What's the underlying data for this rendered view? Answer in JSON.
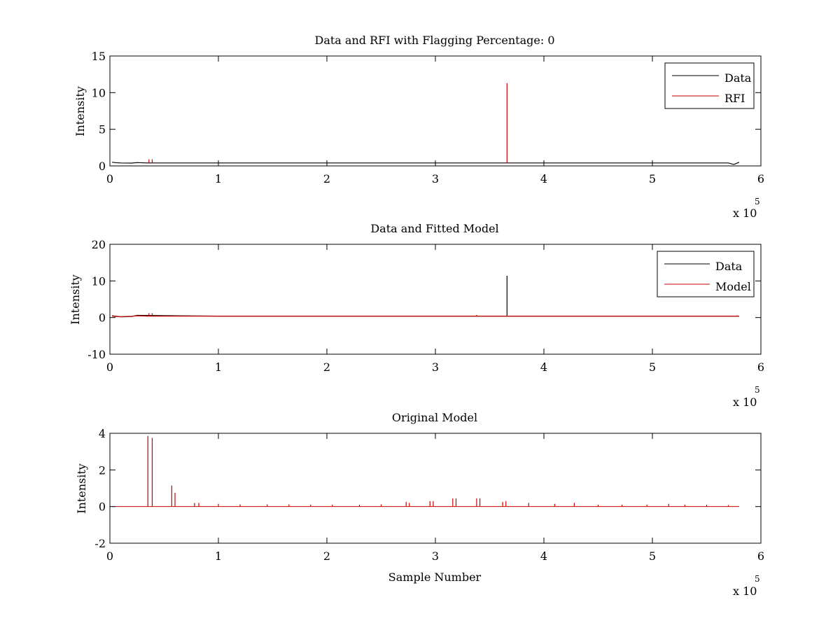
{
  "figure": {
    "background": "#ffffff"
  },
  "chart_data": [
    {
      "type": "line",
      "title": "Data and RFI with Flagging Percentage: 0",
      "xlabel": "",
      "ylabel": "Intensity",
      "xlim": [
        0,
        6
      ],
      "ylim": [
        0,
        15
      ],
      "xticks": [
        "0",
        "1",
        "2",
        "3",
        "4",
        "5",
        "6"
      ],
      "yticks": [
        "0",
        "5",
        "10",
        "15"
      ],
      "x_multiplier": {
        "base": "x 10",
        "exponent": "5"
      },
      "grid": false,
      "legend_position": "top-right",
      "series": [
        {
          "name": "Data",
          "color": "#000000",
          "kind": "baseline",
          "points": [
            [
              0.02,
              0.5
            ],
            [
              0.05,
              0.45
            ],
            [
              0.1,
              0.4
            ],
            [
              0.2,
              0.38
            ],
            [
              0.25,
              0.45
            ],
            [
              0.35,
              0.4
            ],
            [
              1,
              0.4
            ],
            [
              2,
              0.4
            ],
            [
              3,
              0.4
            ],
            [
              4,
              0.4
            ],
            [
              5,
              0.4
            ],
            [
              5.7,
              0.4
            ],
            [
              5.75,
              0.2
            ],
            [
              5.8,
              0.5
            ]
          ]
        },
        {
          "name": "RFI",
          "color": "#cc0000",
          "kind": "spikes",
          "spikes": [
            [
              0.36,
              0.9
            ],
            [
              0.39,
              0.9
            ],
            [
              3.66,
              11.3
            ]
          ]
        }
      ]
    },
    {
      "type": "line",
      "title": "Data and Fitted Model",
      "xlabel": "",
      "ylabel": "Intensity",
      "xlim": [
        0,
        6
      ],
      "ylim": [
        -10,
        20
      ],
      "xticks": [
        "0",
        "1",
        "2",
        "3",
        "4",
        "5",
        "6"
      ],
      "yticks": [
        "-10",
        "0",
        "10",
        "20"
      ],
      "x_multiplier": {
        "base": "x 10",
        "exponent": "5"
      },
      "grid": false,
      "legend_position": "top-right",
      "series": [
        {
          "name": "Data",
          "color": "#000000",
          "kind": "spikes",
          "spikes": [
            [
              3.66,
              11.4
            ]
          ],
          "points": [
            [
              0.02,
              0.5
            ],
            [
              0.1,
              0.2
            ],
            [
              0.2,
              0.3
            ],
            [
              0.25,
              0.6
            ],
            [
              1,
              0.4
            ],
            [
              3,
              0.4
            ],
            [
              5,
              0.4
            ],
            [
              5.8,
              0.4
            ]
          ]
        },
        {
          "name": "Model",
          "color": "#cc0000",
          "kind": "baseline",
          "points": [
            [
              0.02,
              0.4
            ],
            [
              0.05,
              0.3
            ],
            [
              0.1,
              0.25
            ],
            [
              0.2,
              0.35
            ],
            [
              0.25,
              0.5
            ],
            [
              0.35,
              0.4
            ],
            [
              1,
              0.4
            ],
            [
              2,
              0.4
            ],
            [
              3,
              0.4
            ],
            [
              4,
              0.4
            ],
            [
              5,
              0.4
            ],
            [
              5.8,
              0.4
            ]
          ],
          "spikes": [
            [
              0.36,
              1.2
            ],
            [
              0.39,
              1.2
            ],
            [
              3.38,
              0.7
            ],
            [
              5.78,
              0.6
            ]
          ]
        }
      ]
    },
    {
      "type": "line",
      "title": "Original Model",
      "xlabel": "Sample Number",
      "ylabel": "Intensity",
      "xlim": [
        0,
        6
      ],
      "ylim": [
        -2,
        4
      ],
      "xticks": [
        "0",
        "1",
        "2",
        "3",
        "4",
        "5",
        "6"
      ],
      "yticks": [
        "-2",
        "0",
        "2",
        "4"
      ],
      "x_multiplier": {
        "base": "x 10",
        "exponent": "5"
      },
      "grid": false,
      "legend_position": "none",
      "series": [
        {
          "color": "#cc0000",
          "kind": "spikes",
          "baseline_y": 0,
          "baseline_x": [
            0.02,
            5.8
          ],
          "spikes": [
            [
              0.35,
              3.85
            ],
            [
              0.39,
              3.75
            ],
            [
              0.57,
              1.15
            ],
            [
              0.6,
              0.75
            ],
            [
              0.78,
              0.2
            ],
            [
              0.82,
              0.2
            ],
            [
              1.0,
              0.15
            ],
            [
              1.2,
              0.12
            ],
            [
              1.45,
              0.12
            ],
            [
              1.65,
              0.12
            ],
            [
              1.85,
              0.1
            ],
            [
              2.05,
              0.1
            ],
            [
              2.3,
              0.1
            ],
            [
              2.5,
              0.12
            ],
            [
              2.73,
              0.25
            ],
            [
              2.76,
              0.2
            ],
            [
              2.95,
              0.3
            ],
            [
              2.98,
              0.3
            ],
            [
              3.16,
              0.45
            ],
            [
              3.19,
              0.45
            ],
            [
              3.38,
              0.45
            ],
            [
              3.41,
              0.45
            ],
            [
              3.62,
              0.25
            ],
            [
              3.65,
              0.3
            ],
            [
              3.86,
              0.2
            ],
            [
              4.1,
              0.15
            ],
            [
              4.28,
              0.2
            ],
            [
              4.5,
              0.1
            ],
            [
              4.72,
              0.1
            ],
            [
              4.95,
              0.1
            ],
            [
              5.15,
              0.15
            ],
            [
              5.3,
              0.1
            ],
            [
              5.5,
              0.1
            ],
            [
              5.7,
              0.08
            ]
          ]
        }
      ]
    }
  ]
}
